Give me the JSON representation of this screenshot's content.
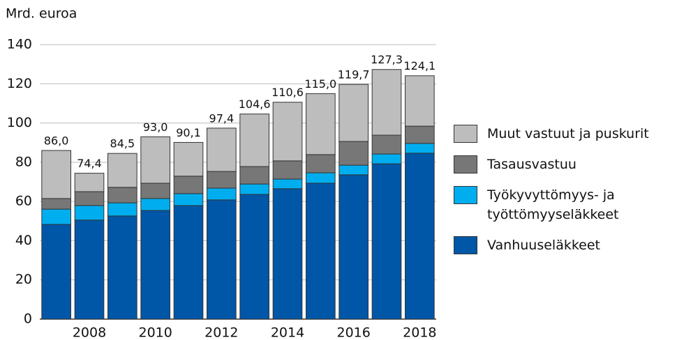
{
  "chart_data": {
    "type": "stacked_bar",
    "y_label": "Mrd. euroa",
    "categories": [
      null,
      "2008",
      null,
      "2010",
      null,
      "2012",
      null,
      "2014",
      null,
      "2016",
      null,
      "2018"
    ],
    "series": [
      {
        "name": "Vanhuuseläkkeet",
        "color": "#0057a8",
        "values": [
          48.3,
          50.5,
          52.6,
          55.4,
          57.9,
          60.8,
          63.6,
          66.5,
          69.3,
          73.6,
          79.2,
          84.6
        ]
      },
      {
        "name": "Työkyvyttömyys- ja työttömyyseläkkeet",
        "color": "#00aeef",
        "values": [
          7.8,
          7.4,
          6.7,
          6.1,
          6.1,
          6.0,
          5.3,
          4.9,
          5.3,
          4.9,
          5.0,
          5.0
        ]
      },
      {
        "name": "Tasausvastuu",
        "color": "#777777",
        "values": [
          5.4,
          7.1,
          7.9,
          7.8,
          8.9,
          8.5,
          8.9,
          9.3,
          9.3,
          12.1,
          9.6,
          8.8
        ]
      },
      {
        "name": "Muut vastuut ja puskurit",
        "color": "#bdbdbd",
        "values": [
          24.5,
          9.4,
          17.3,
          23.7,
          17.2,
          22.1,
          26.8,
          29.9,
          31.1,
          29.1,
          33.5,
          25.7
        ]
      }
    ],
    "totals": [
      86.0,
      74.4,
      84.5,
      93.0,
      90.1,
      97.4,
      104.6,
      110.6,
      115.0,
      119.7,
      127.3,
      124.1
    ],
    "total_labels": [
      "86,0",
      "74,4",
      "84,5",
      "93,0",
      "90,1",
      "97,4",
      "104,6",
      "110,6",
      "115,0",
      "119,7",
      "127,3",
      "124,1"
    ],
    "ylim": [
      0,
      140
    ],
    "yticks": [
      0,
      20,
      40,
      60,
      80,
      100,
      120,
      140
    ],
    "grid": true
  }
}
